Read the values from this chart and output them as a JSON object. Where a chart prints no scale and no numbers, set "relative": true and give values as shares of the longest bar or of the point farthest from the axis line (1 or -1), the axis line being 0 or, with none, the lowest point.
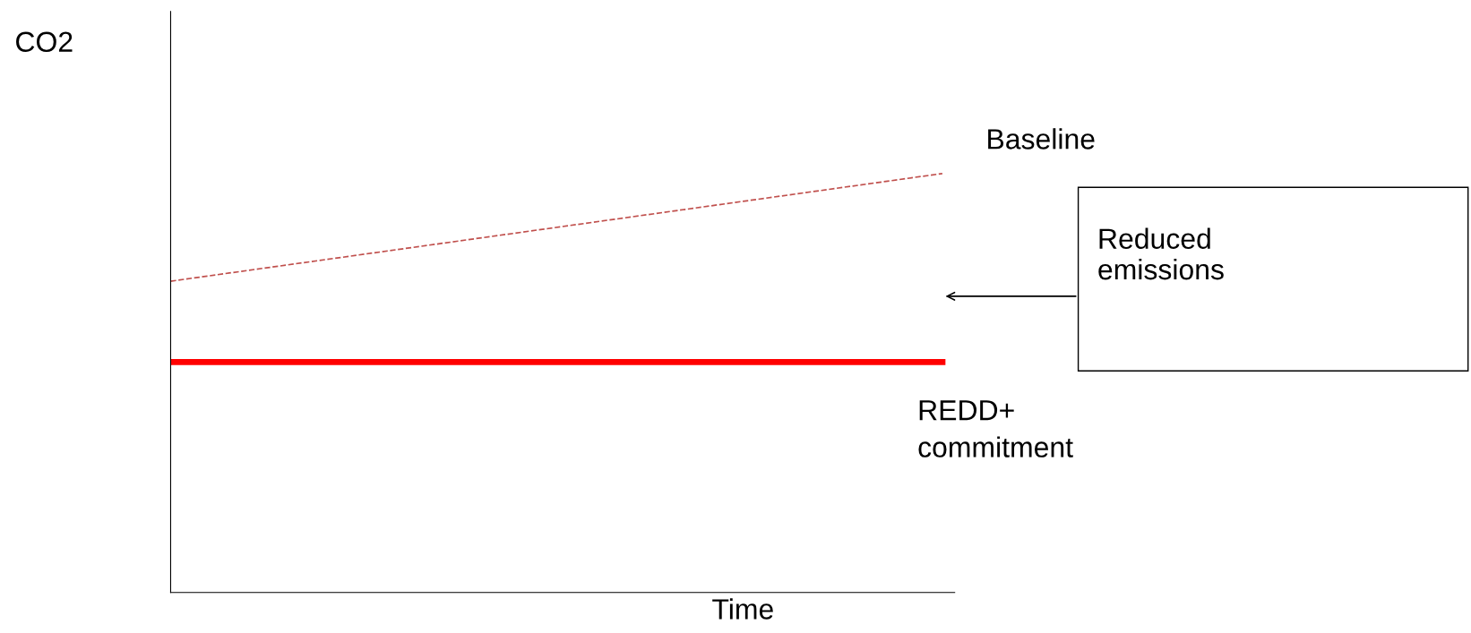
{
  "chart_data": {
    "type": "line",
    "relative": true,
    "xlabel": "Time",
    "ylabel": "CO2",
    "categories": [
      null,
      null
    ],
    "series": [
      {
        "name": "Baseline",
        "color": "#c0504d",
        "values": [
          0.743,
          1
        ],
        "line_style": "dashed"
      },
      {
        "name": "REDD+\ncommitment",
        "color": "#ff0000",
        "values": [
          0.55,
          0.55
        ],
        "line_style": "solid"
      }
    ],
    "annotations": [
      "Reduced\nemissions"
    ],
    "legend": false
  }
}
